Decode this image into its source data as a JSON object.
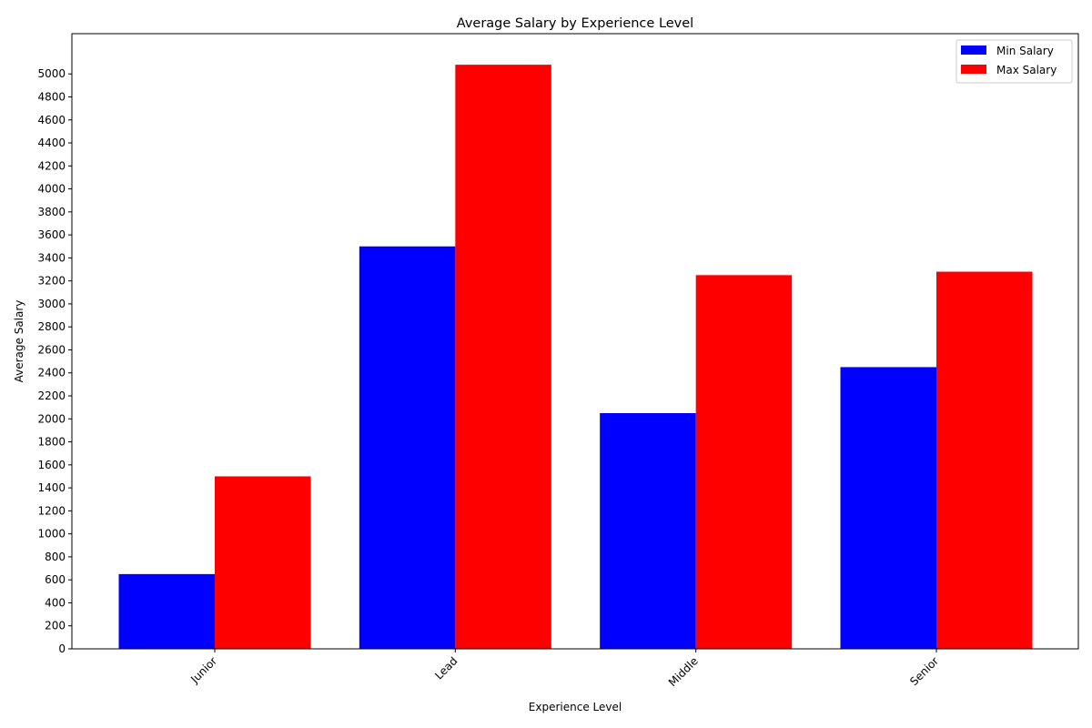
{
  "chart_data": {
    "type": "bar",
    "title": "Average Salary by Experience Level",
    "xlabel": "Experience Level",
    "ylabel": "Average Salary",
    "categories": [
      "Junior",
      "Lead",
      "Middle",
      "Senior"
    ],
    "series": [
      {
        "name": "Min Salary",
        "color": "#0000ff",
        "values": [
          650,
          3500,
          2050,
          2450
        ]
      },
      {
        "name": "Max Salary",
        "color": "#ff0000",
        "values": [
          1500,
          5080,
          3250,
          3280
        ]
      }
    ],
    "ylim": [
      0,
      5350
    ],
    "yticks": [
      0,
      200,
      400,
      600,
      800,
      1000,
      1200,
      1400,
      1600,
      1800,
      2000,
      2200,
      2400,
      2600,
      2800,
      3000,
      3200,
      3400,
      3600,
      3800,
      4000,
      4200,
      4400,
      4600,
      4800,
      5000
    ],
    "grid": false,
    "legend": "top-right",
    "xtick_rotation": 45
  }
}
